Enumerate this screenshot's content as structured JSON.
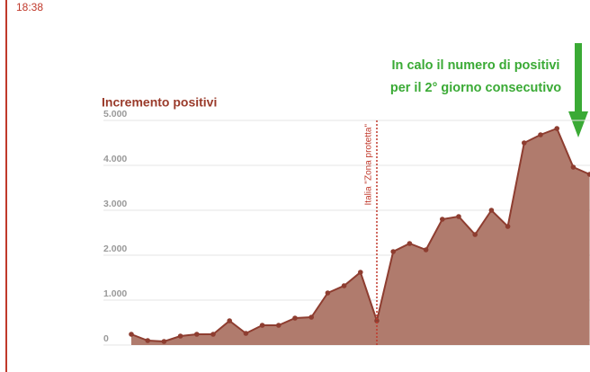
{
  "time": "18:38",
  "chart_data": {
    "type": "area",
    "title": "Incremento positivi",
    "categories": [
      null,
      null,
      null,
      null,
      null,
      null,
      null,
      null,
      null,
      null,
      null,
      null,
      null,
      null,
      null,
      null,
      null,
      null,
      null,
      null,
      null,
      null,
      null,
      null,
      null,
      null,
      null,
      null,
      null
    ],
    "values": [
      240,
      100,
      80,
      200,
      240,
      240,
      540,
      260,
      440,
      440,
      600,
      620,
      1160,
      1320,
      1620,
      540,
      2080,
      2260,
      2120,
      2800,
      2860,
      2460,
      3000,
      2640,
      4500,
      4680,
      4820,
      3960,
      3800
    ],
    "color": "#b07b6d",
    "line_color": "#8e3d30",
    "ylim": [
      0,
      5000
    ],
    "yticks": [
      0,
      {
        "value": 1000,
        "label": "1.000"
      },
      {
        "value": 2000,
        "label": "2.000"
      },
      {
        "value": 3000,
        "label": "3.000"
      },
      {
        "value": 4000,
        "label": "4.000"
      },
      {
        "value": 5000,
        "label": "5.000"
      }
    ],
    "grid": true,
    "marker_annotation": {
      "text": "Italia \"Zona protetta\"",
      "index": 15
    },
    "headline": [
      "In calo il numero di positivi",
      "per il 2° giorno consecutivo"
    ]
  }
}
